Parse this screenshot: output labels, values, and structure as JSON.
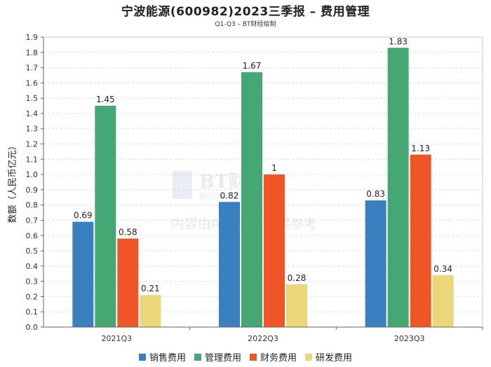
{
  "title": "宁波能源(600982)2023三季报 – 费用管理",
  "subtitle": "Q1-Q3 – BT财经绘制",
  "watermark": {
    "logo_main": "BT财经",
    "logo_sub": "BUSINESS TIMES",
    "notice": "内容由AI生成，仅供参考"
  },
  "chart_data": {
    "type": "bar",
    "title": "宁波能源(600982)2023三季报 – 费用管理",
    "subtitle": "Q1-Q3 – BT财经绘制",
    "xlabel": "",
    "ylabel": "数额（人民币亿元）",
    "ylim": [
      0,
      1.9
    ],
    "ytick_step": 0.1,
    "grid": true,
    "legend_position": "bottom",
    "categories": [
      "2021Q3",
      "2022Q3",
      "2023Q3"
    ],
    "series": [
      {
        "name": "销售费用",
        "color": "#3a80c0",
        "values": [
          0.69,
          0.82,
          0.83
        ],
        "labels": [
          "0.69",
          "0.82",
          "0.83"
        ]
      },
      {
        "name": "管理费用",
        "color": "#45a874",
        "values": [
          1.45,
          1.67,
          1.83
        ],
        "labels": [
          "1.45",
          "1.67",
          "1.83"
        ]
      },
      {
        "name": "财务费用",
        "color": "#f05528",
        "values": [
          0.58,
          1.0,
          1.13
        ],
        "labels": [
          "0.58",
          "1",
          "1.13"
        ]
      },
      {
        "name": "研发费用",
        "color": "#ecd67a",
        "values": [
          0.21,
          0.28,
          0.34
        ],
        "labels": [
          "0.21",
          "0.28",
          "0.34"
        ]
      }
    ]
  }
}
